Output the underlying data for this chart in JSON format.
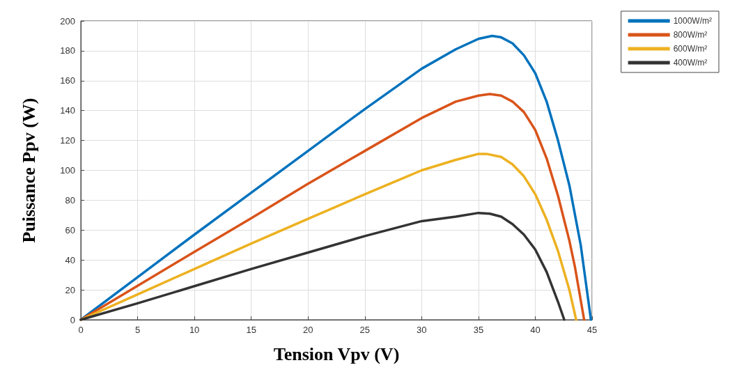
{
  "chart_data": {
    "type": "line",
    "xlabel": "Tension Vpv (V)",
    "ylabel": "Puissance Ppv (W)",
    "xlim": [
      0,
      45
    ],
    "xticks": [
      0,
      5,
      10,
      15,
      20,
      25,
      30,
      35,
      40,
      45
    ],
    "ylim": [
      0,
      200
    ],
    "yticks": [
      0,
      20,
      40,
      60,
      80,
      100,
      120,
      140,
      160,
      180,
      200
    ],
    "grid": true,
    "legend": "top right",
    "marker": "none",
    "line_style": "solid",
    "series": [
      {
        "name": "1000W/m²",
        "color": "#0072bd",
        "x": [
          0,
          5,
          10,
          15,
          20,
          25,
          30,
          33,
          35,
          36.2,
          37,
          38,
          39,
          40,
          41,
          42,
          43,
          44,
          44.9
        ],
        "values": [
          0,
          28.5,
          57,
          85,
          113,
          141,
          168,
          181,
          188,
          190,
          189,
          185,
          177,
          165,
          146,
          120,
          90,
          50,
          0
        ]
      },
      {
        "name": "800W/m²",
        "color": "#d95319",
        "x": [
          0,
          5,
          10,
          15,
          20,
          25,
          30,
          33,
          35,
          36,
          37,
          38,
          39,
          40,
          41,
          42,
          43,
          43.5,
          44.3
        ],
        "values": [
          0,
          22.7,
          45.5,
          68,
          91,
          113,
          135,
          146,
          150,
          151,
          150,
          146,
          139,
          127,
          108,
          83,
          53,
          35,
          0
        ]
      },
      {
        "name": "600W/m²",
        "color": "#edb120",
        "x": [
          0,
          5,
          10,
          15,
          20,
          25,
          30,
          33,
          35,
          35.7,
          37,
          38,
          39,
          40,
          41,
          42,
          43,
          43.6
        ],
        "values": [
          0,
          17,
          34,
          51,
          67.5,
          84,
          100,
          107,
          111,
          111,
          109,
          104,
          96,
          84,
          67,
          46,
          20,
          0
        ]
      },
      {
        "name": "400W/m²",
        "color": "#333333",
        "x": [
          0,
          5,
          10,
          15,
          20,
          25,
          30,
          33,
          35,
          36,
          37,
          38,
          39,
          40,
          41,
          42,
          42.55
        ],
        "values": [
          0,
          11,
          22.5,
          34,
          45,
          56,
          66,
          69,
          71.5,
          71,
          69,
          64,
          57,
          47,
          32,
          12,
          0
        ]
      }
    ]
  }
}
